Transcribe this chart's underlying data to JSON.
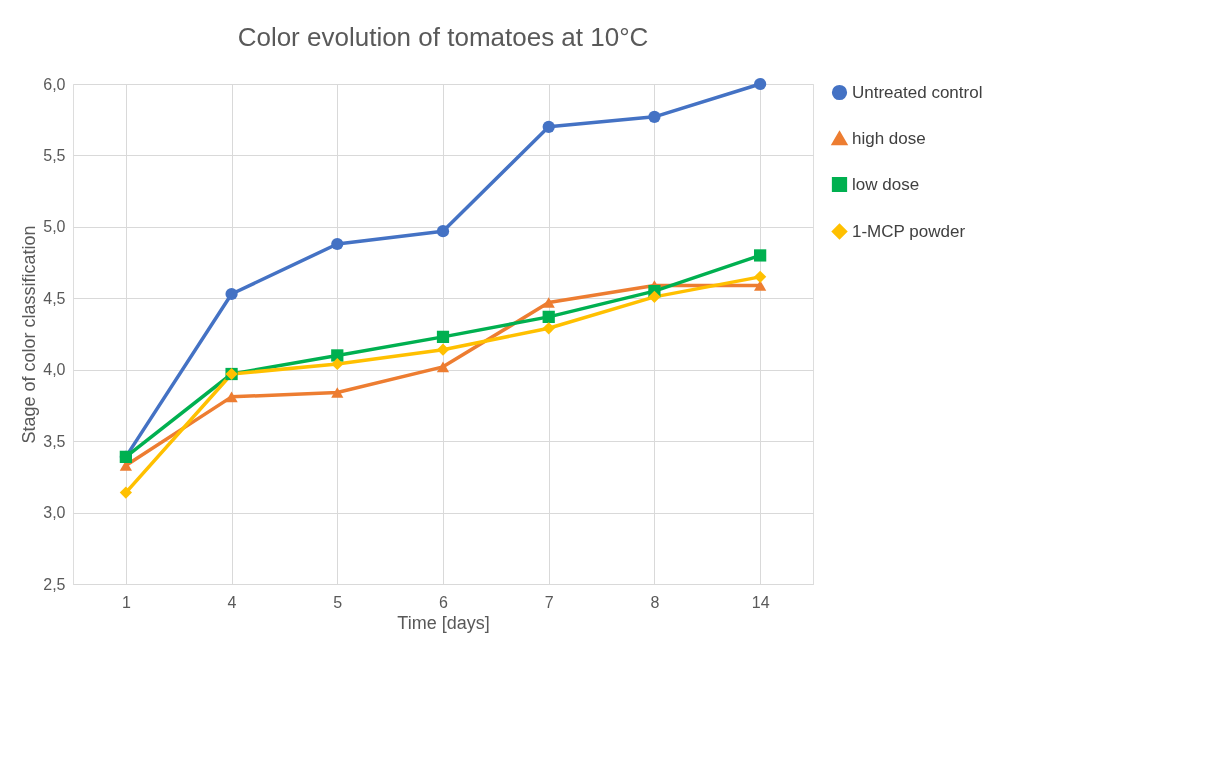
{
  "chart_data": {
    "type": "line",
    "title": "Color evolution of tomatoes at 10°C",
    "xlabel": "Time [days]",
    "ylabel": "Stage of color classification",
    "categories": [
      "1",
      "4",
      "5",
      "6",
      "7",
      "8",
      "14"
    ],
    "series": [
      {
        "name": "Untreated control",
        "color": "#4472c4",
        "marker": "circle",
        "values": [
          3.39,
          4.53,
          4.88,
          4.97,
          5.7,
          5.77,
          6.0
        ]
      },
      {
        "name": "high dose",
        "color": "#ed7d31",
        "marker": "triangle",
        "values": [
          3.33,
          3.81,
          3.84,
          4.02,
          4.47,
          4.59,
          4.59
        ]
      },
      {
        "name": "low dose",
        "color": "#00b050",
        "marker": "square",
        "values": [
          3.39,
          3.97,
          4.1,
          4.23,
          4.37,
          4.55,
          4.8
        ]
      },
      {
        "name": "1-MCP powder",
        "color": "#ffc000",
        "marker": "diamond",
        "values": [
          3.14,
          3.97,
          4.04,
          4.14,
          4.29,
          4.51,
          4.65
        ]
      }
    ],
    "ylim": [
      2.5,
      6.0
    ],
    "yticks": [
      {
        "value": 2.5,
        "label": "2,5"
      },
      {
        "value": 3.0,
        "label": "3,0"
      },
      {
        "value": 3.5,
        "label": "3,5"
      },
      {
        "value": 4.0,
        "label": "4,0"
      },
      {
        "value": 4.5,
        "label": "4,5"
      },
      {
        "value": 5.0,
        "label": "5,0"
      },
      {
        "value": 5.5,
        "label": "5,5"
      },
      {
        "value": 6.0,
        "label": "6,0"
      }
    ],
    "grid": true,
    "legend": "right",
    "line_style": "solid"
  }
}
